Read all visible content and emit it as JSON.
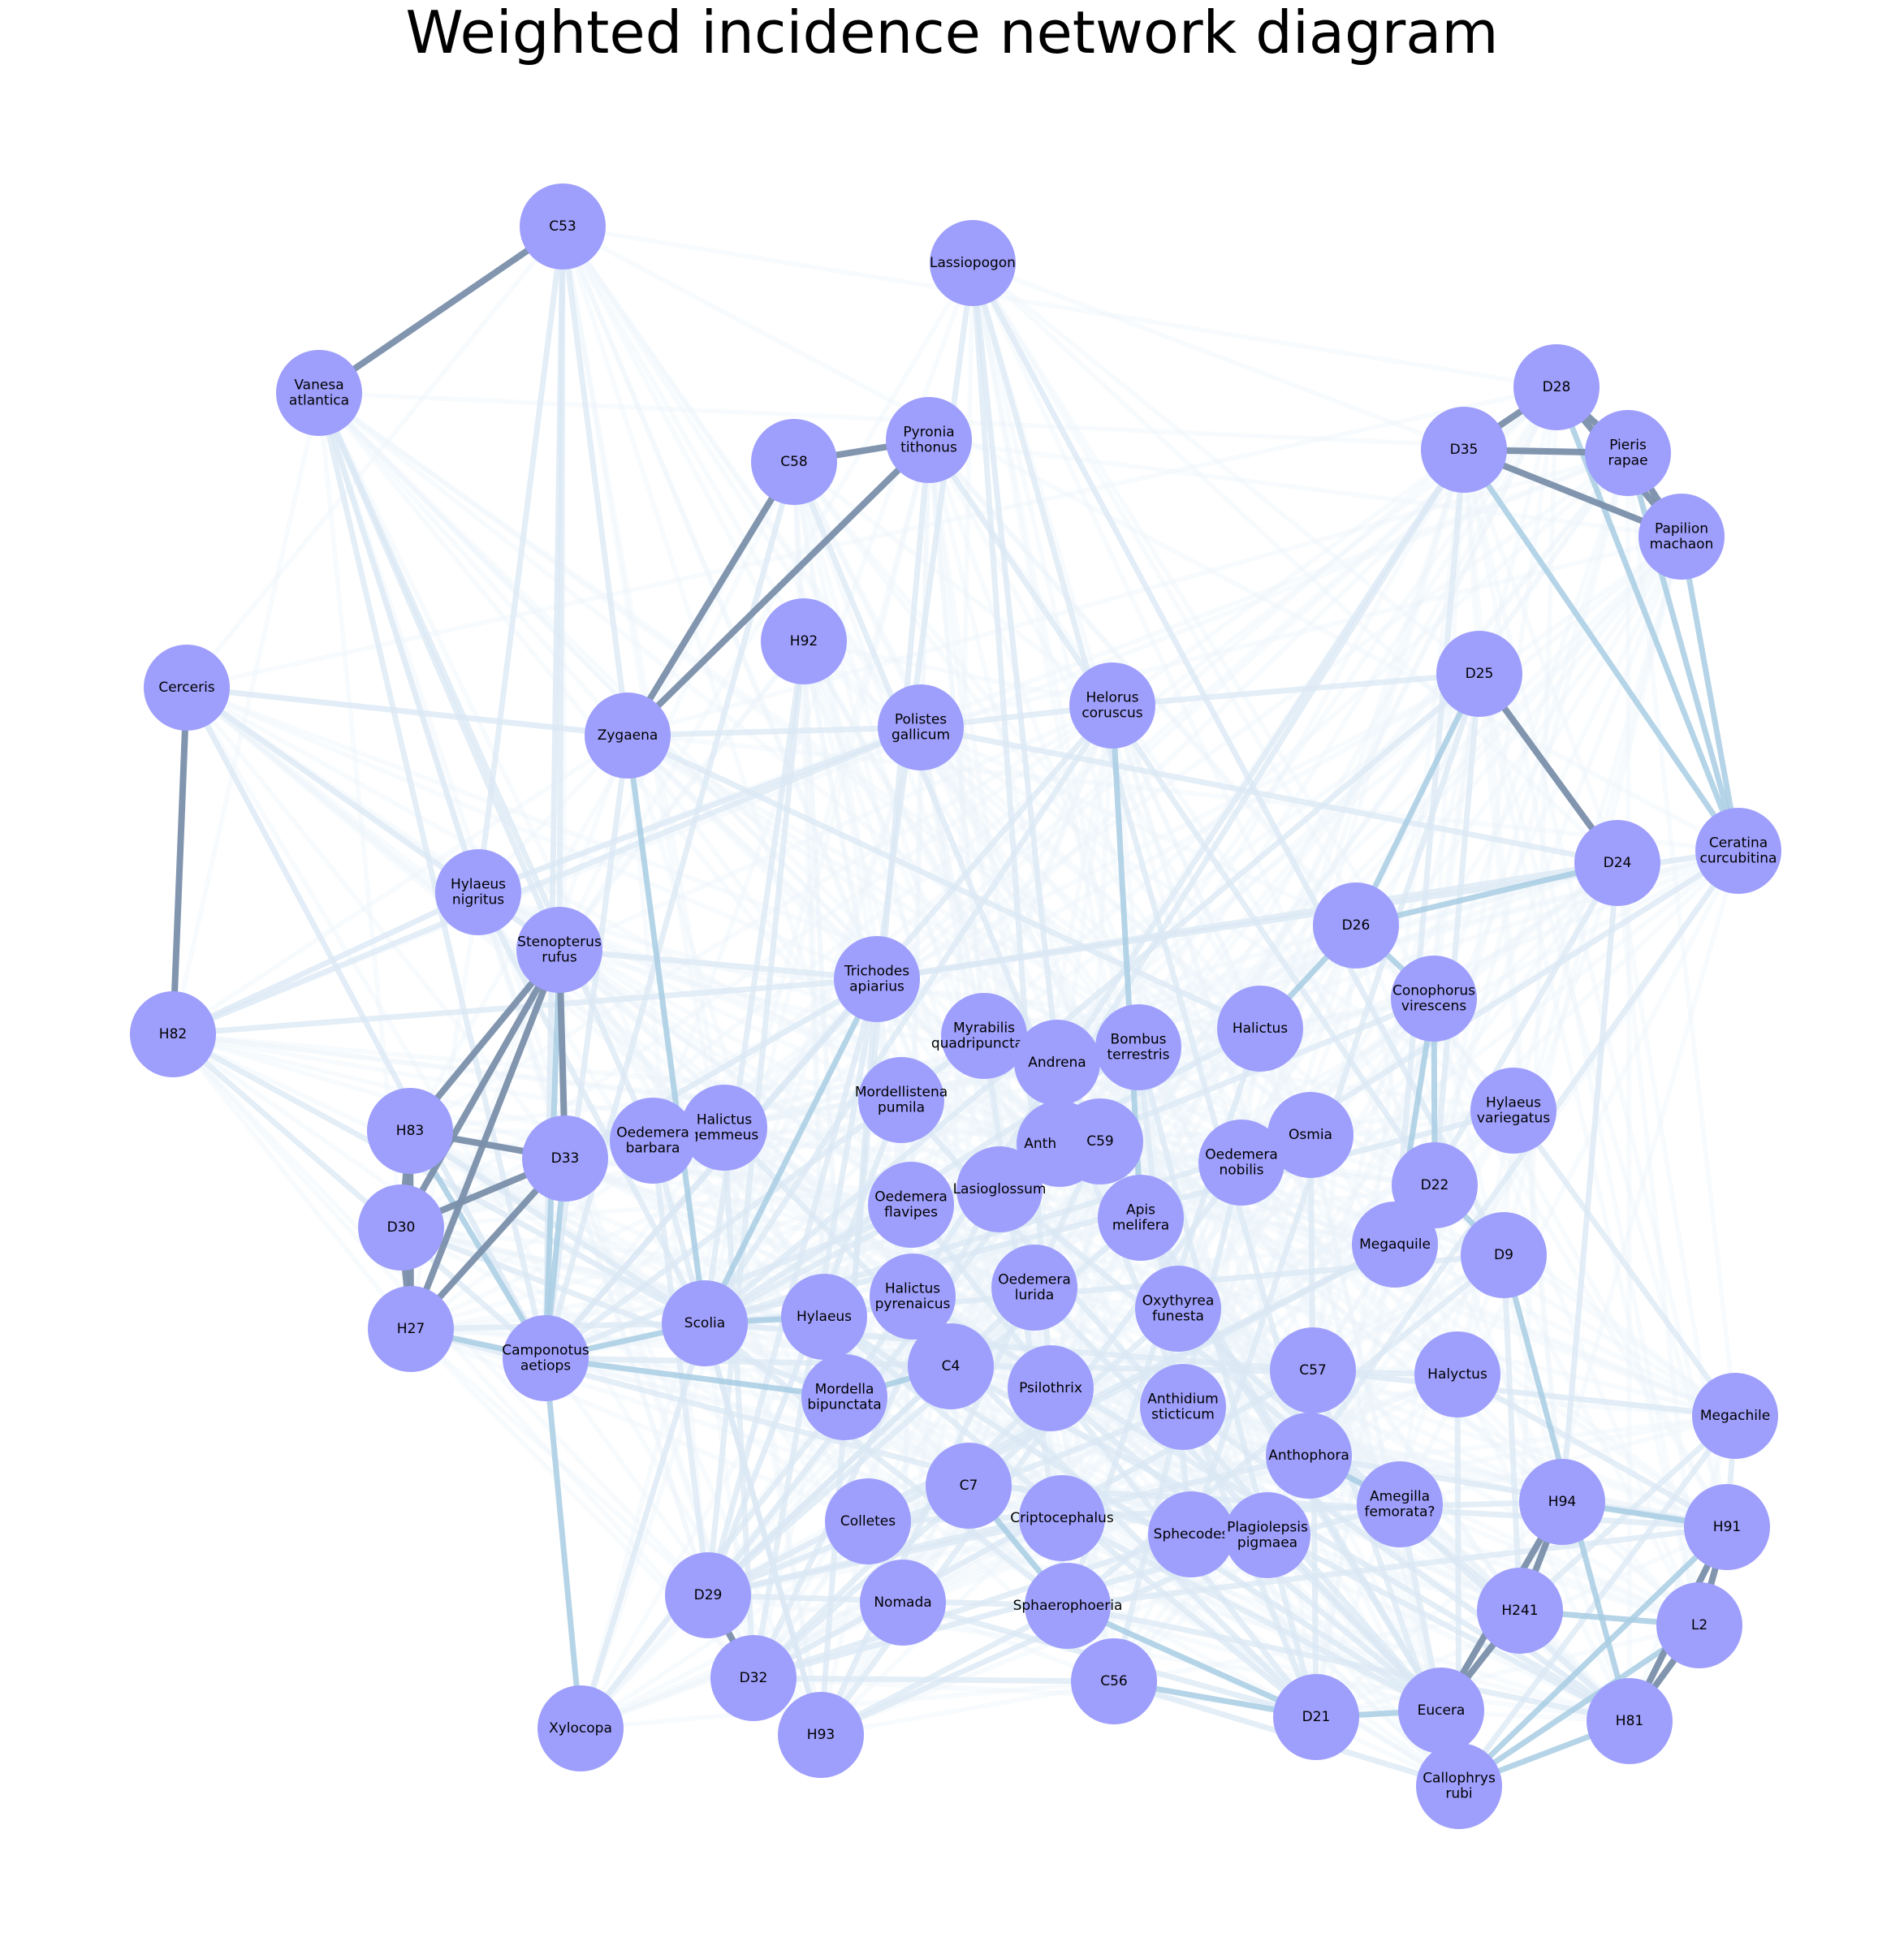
{
  "title": "Weighted incidence network diagram",
  "style": {
    "node_color": "#9e9efd",
    "strong_edge_color": "#7a8fab",
    "medium_edge_color": "#a8cde3",
    "weak_edge_color": "#dbe8f4",
    "faint_edge_color": "#ecf3fa"
  },
  "nodes": [
    {
      "id": "C53",
      "label": "C53"
    },
    {
      "id": "Lassiopogon",
      "label": "Lassiopogon"
    },
    {
      "id": "Vanesa",
      "label": "Vanesa\natlantica"
    },
    {
      "id": "Pyronia",
      "label": "Pyronia\ntithonus"
    },
    {
      "id": "C58",
      "label": "C58"
    },
    {
      "id": "D28",
      "label": "D28"
    },
    {
      "id": "D35",
      "label": "D35"
    },
    {
      "id": "Pieris",
      "label": "Pieris\nrapae"
    },
    {
      "id": "Papilion",
      "label": "Papilion\nmachaon"
    },
    {
      "id": "H92",
      "label": "H92"
    },
    {
      "id": "Cerceris",
      "label": "Cerceris"
    },
    {
      "id": "D25",
      "label": "D25"
    },
    {
      "id": "Zygaena",
      "label": "Zygaena"
    },
    {
      "id": "Polistes",
      "label": "Polistes\ngallicum"
    },
    {
      "id": "Helorus",
      "label": "Helorus\ncoruscus"
    },
    {
      "id": "Ceratina",
      "label": "Ceratina\ncurcubitina"
    },
    {
      "id": "D24",
      "label": "D24"
    },
    {
      "id": "HylaeusN",
      "label": "Hylaeus\nnigritus"
    },
    {
      "id": "D26",
      "label": "D26"
    },
    {
      "id": "Stenopterus",
      "label": "Stenopterus\nrufus"
    },
    {
      "id": "Trichodes",
      "label": "Trichodes\napiarius"
    },
    {
      "id": "Conophorus",
      "label": "Conophorus\nvirescens"
    },
    {
      "id": "H82",
      "label": "H82"
    },
    {
      "id": "Myrabilis",
      "label": "Myrabilis\nquadripunctata"
    },
    {
      "id": "Halictus",
      "label": "Halictus"
    },
    {
      "id": "Bombus",
      "label": "Bombus\nterrestris"
    },
    {
      "id": "Andrena",
      "label": "Andrena"
    },
    {
      "id": "Mordellistena",
      "label": "Mordellistena\npumila"
    },
    {
      "id": "HylaeusV",
      "label": "Hylaeus\nvariegatus"
    },
    {
      "id": "H83",
      "label": "H83"
    },
    {
      "id": "HalictusG",
      "label": "Halictus\ngemmeus"
    },
    {
      "id": "OedemeraB",
      "label": "Oedemera\nbarbara"
    },
    {
      "id": "Anthidium",
      "label": "Anthidium"
    },
    {
      "id": "C59",
      "label": "C59"
    },
    {
      "id": "Osmia",
      "label": "Osmia"
    },
    {
      "id": "D33",
      "label": "D33"
    },
    {
      "id": "OedemeraN",
      "label": "Oedemera\nnobilis"
    },
    {
      "id": "D22",
      "label": "D22"
    },
    {
      "id": "Lasioglossum",
      "label": "Lasioglossum"
    },
    {
      "id": "OedemeraF",
      "label": "Oedemera\nflavipes"
    },
    {
      "id": "Apis",
      "label": "Apis\nmelifera"
    },
    {
      "id": "D30",
      "label": "D30"
    },
    {
      "id": "Megaquile",
      "label": "Megaquile"
    },
    {
      "id": "D9",
      "label": "D9"
    },
    {
      "id": "OedemeraL",
      "label": "Oedemera\nlurida"
    },
    {
      "id": "HalictusP",
      "label": "Halictus\npyrenaicus"
    },
    {
      "id": "Oxythyrea",
      "label": "Oxythyrea\nfunesta"
    },
    {
      "id": "H27",
      "label": "H27"
    },
    {
      "id": "Scolia",
      "label": "Scolia"
    },
    {
      "id": "Hylaeus",
      "label": "Hylaeus"
    },
    {
      "id": "Camponotus",
      "label": "Camponotus\naetiops"
    },
    {
      "id": "C4",
      "label": "C4"
    },
    {
      "id": "C57",
      "label": "C57"
    },
    {
      "id": "Halyctus",
      "label": "Halyctus"
    },
    {
      "id": "Mordella",
      "label": "Mordella\nbipunctata"
    },
    {
      "id": "Psilothrix",
      "label": "Psilothrix"
    },
    {
      "id": "AnthidiumS",
      "label": "Anthidium\nsticticum"
    },
    {
      "id": "Megachile",
      "label": "Megachile"
    },
    {
      "id": "Anthophora",
      "label": "Anthophora"
    },
    {
      "id": "C7",
      "label": "C7"
    },
    {
      "id": "Amegilla",
      "label": "Amegilla\nfemorata?"
    },
    {
      "id": "H94",
      "label": "H94"
    },
    {
      "id": "Colletes",
      "label": "Colletes"
    },
    {
      "id": "Criptocephalus",
      "label": "Criptocephalus"
    },
    {
      "id": "Sphecodes",
      "label": "Sphecodes"
    },
    {
      "id": "Plagiolepsis",
      "label": "Plagiolepsis\npigmaea"
    },
    {
      "id": "H91",
      "label": "H91"
    },
    {
      "id": "D29",
      "label": "D29"
    },
    {
      "id": "Nomada",
      "label": "Nomada"
    },
    {
      "id": "Sphaerophoeria",
      "label": "Sphaerophoeria"
    },
    {
      "id": "H241",
      "label": "H241"
    },
    {
      "id": "L2",
      "label": "L2"
    },
    {
      "id": "D32",
      "label": "D32"
    },
    {
      "id": "C56",
      "label": "C56"
    },
    {
      "id": "Eucera",
      "label": "Eucera"
    },
    {
      "id": "H93",
      "label": "H93"
    },
    {
      "id": "D21",
      "label": "D21"
    },
    {
      "id": "H81",
      "label": "H81"
    },
    {
      "id": "Xylocopa",
      "label": "Xylocopa"
    },
    {
      "id": "Callophrys",
      "label": "Callophrys\nrubi"
    }
  ],
  "strong_edges": [
    [
      "C53",
      "Vanesa"
    ],
    [
      "C58",
      "Pyronia"
    ],
    [
      "C58",
      "Zygaena"
    ],
    [
      "Pyronia",
      "Zygaena"
    ],
    [
      "Cerceris",
      "H82"
    ],
    [
      "D28",
      "D35"
    ],
    [
      "D28",
      "Pieris"
    ],
    [
      "D28",
      "Papilion"
    ],
    [
      "D35",
      "Pieris"
    ],
    [
      "D35",
      "Papilion"
    ],
    [
      "Pieris",
      "Papilion"
    ],
    [
      "D25",
      "D24"
    ],
    [
      "Stenopterus",
      "H83"
    ],
    [
      "Stenopterus",
      "D30"
    ],
    [
      "Stenopterus",
      "H27"
    ],
    [
      "Stenopterus",
      "D33"
    ],
    [
      "H83",
      "D30"
    ],
    [
      "H83",
      "D33"
    ],
    [
      "H83",
      "H27"
    ],
    [
      "D30",
      "D33"
    ],
    [
      "D30",
      "H27"
    ],
    [
      "D33",
      "H27"
    ],
    [
      "H94",
      "H241"
    ],
    [
      "H94",
      "Eucera"
    ],
    [
      "H241",
      "Eucera"
    ],
    [
      "H91",
      "L2"
    ],
    [
      "H91",
      "H81"
    ],
    [
      "L2",
      "H81"
    ],
    [
      "D29",
      "D32"
    ]
  ],
  "medium_edges": [
    [
      "Camponotus",
      "Xylocopa"
    ],
    [
      "D35",
      "Ceratina"
    ],
    [
      "Papilion",
      "Ceratina"
    ],
    [
      "Pieris",
      "Ceratina"
    ],
    [
      "D28",
      "Ceratina"
    ],
    [
      "D25",
      "D26"
    ],
    [
      "D26",
      "D24"
    ],
    [
      "D26",
      "Conophorus"
    ],
    [
      "Conophorus",
      "D22"
    ],
    [
      "D22",
      "D9"
    ],
    [
      "D9",
      "H81"
    ],
    [
      "Stenopterus",
      "Camponotus"
    ],
    [
      "H83",
      "Camponotus"
    ],
    [
      "H27",
      "Camponotus"
    ],
    [
      "D33",
      "Camponotus"
    ],
    [
      "Camponotus",
      "Scolia"
    ],
    [
      "Callophrys",
      "L2"
    ],
    [
      "Callophrys",
      "H91"
    ],
    [
      "Callophrys",
      "H81"
    ],
    [
      "Eucera",
      "Callophrys"
    ],
    [
      "H94",
      "H91"
    ],
    [
      "H241",
      "L2"
    ],
    [
      "D21",
      "Eucera"
    ],
    [
      "Scolia",
      "Hylaeus"
    ],
    [
      "Helorus",
      "Apis"
    ],
    [
      "Conophorus",
      "Megaquile"
    ],
    [
      "C56",
      "D21"
    ],
    [
      "Trichodes",
      "Scolia"
    ],
    [
      "D26",
      "Halictus"
    ],
    [
      "Sphaerophoeria",
      "C7"
    ],
    [
      "Mordella",
      "C4"
    ],
    [
      "Anthophora",
      "Amegilla"
    ],
    [
      "Zygaena",
      "Scolia"
    ],
    [
      "Mordella",
      "Camponotus"
    ],
    [
      "Sphaerophoeria",
      "D21"
    ]
  ],
  "weak_edges": [
    [
      "C53",
      "HylaeusN"
    ],
    [
      "C53",
      "Zygaena"
    ],
    [
      "C53",
      "Stenopterus"
    ],
    [
      "C53",
      "Camponotus"
    ],
    [
      "Vanesa",
      "HylaeusN"
    ],
    [
      "Vanesa",
      "Stenopterus"
    ],
    [
      "Vanesa",
      "Camponotus"
    ],
    [
      "Vanesa",
      "OedemeraB"
    ],
    [
      "Lassiopogon",
      "D9"
    ],
    [
      "Lassiopogon",
      "Anthophora"
    ],
    [
      "Lassiopogon",
      "Andrena"
    ],
    [
      "Lassiopogon",
      "Trichodes"
    ],
    [
      "Lassiopogon",
      "Psilothrix"
    ],
    [
      "Cerceris",
      "Zygaena"
    ],
    [
      "Cerceris",
      "Stenopterus"
    ],
    [
      "Cerceris",
      "Camponotus"
    ],
    [
      "H82",
      "HylaeusN"
    ],
    [
      "H82",
      "Polistes"
    ],
    [
      "H82",
      "Trichodes"
    ],
    [
      "H82",
      "Scolia"
    ],
    [
      "H82",
      "Camponotus"
    ],
    [
      "Polistes",
      "D24"
    ],
    [
      "Polistes",
      "Zygaena"
    ],
    [
      "Polistes",
      "Helorus"
    ],
    [
      "Helorus",
      "D25"
    ],
    [
      "Helorus",
      "Scolia"
    ],
    [
      "Helorus",
      "Camponotus"
    ],
    [
      "HylaeusN",
      "Scolia"
    ],
    [
      "HylaeusN",
      "Polistes"
    ],
    [
      "D35",
      "Lasioglossum"
    ],
    [
      "D35",
      "Megaquile"
    ],
    [
      "D35",
      "Mordella"
    ],
    [
      "D25",
      "Scolia"
    ],
    [
      "D25",
      "Sphecodes"
    ],
    [
      "D25",
      "D22"
    ],
    [
      "D24",
      "Megaquile"
    ],
    [
      "D24",
      "Trichodes"
    ],
    [
      "D24",
      "H94"
    ],
    [
      "Ceratina",
      "Trichodes"
    ],
    [
      "Ceratina",
      "Anthophora"
    ],
    [
      "Ceratina",
      "OedemeraN"
    ],
    [
      "Conophorus",
      "Camponotus"
    ],
    [
      "HylaeusV",
      "Scolia"
    ],
    [
      "HylaeusV",
      "Megachile"
    ],
    [
      "Megachile",
      "H91"
    ],
    [
      "Megachile",
      "H241"
    ],
    [
      "Megachile",
      "C57"
    ],
    [
      "Megachile",
      "Callophrys"
    ],
    [
      "H92",
      "Scolia"
    ],
    [
      "H92",
      "D29"
    ],
    [
      "Trichodes",
      "D32"
    ],
    [
      "Trichodes",
      "Camponotus"
    ],
    [
      "Trichodes",
      "D29"
    ],
    [
      "Trichodes",
      "H93"
    ],
    [
      "Myrabilis",
      "Camponotus"
    ],
    [
      "Myrabilis",
      "Sphaerophoeria"
    ],
    [
      "Bombus",
      "Scolia"
    ],
    [
      "Bombus",
      "D21"
    ],
    [
      "Bombus",
      "Sphecodes"
    ],
    [
      "Andrena",
      "D32"
    ],
    [
      "Andrena",
      "Eucera"
    ],
    [
      "Halictus",
      "Scolia"
    ],
    [
      "Halictus",
      "Sphaerophoeria"
    ],
    [
      "Osmia",
      "D21"
    ],
    [
      "Osmia",
      "Scolia"
    ],
    [
      "OedemeraN",
      "C56"
    ],
    [
      "OedemeraN",
      "H93"
    ],
    [
      "Apis",
      "D29"
    ],
    [
      "Apis",
      "Eucera"
    ],
    [
      "Megaquile",
      "Colletes"
    ],
    [
      "Megaquile",
      "D29"
    ],
    [
      "D9",
      "Scolia"
    ],
    [
      "D9",
      "H241"
    ],
    [
      "D9",
      "Sphaerophoeria"
    ],
    [
      "OedemeraL",
      "D29"
    ],
    [
      "OedemeraL",
      "Eucera"
    ],
    [
      "Oxythyrea",
      "D32"
    ],
    [
      "Oxythyrea",
      "H81"
    ],
    [
      "Scolia",
      "H93"
    ],
    [
      "Scolia",
      "Sphaerophoeria"
    ],
    [
      "Hylaeus",
      "Eucera"
    ],
    [
      "Hylaeus",
      "D21"
    ],
    [
      "C4",
      "H81"
    ],
    [
      "C4",
      "D29"
    ],
    [
      "C57",
      "Scolia"
    ],
    [
      "C57",
      "D32"
    ],
    [
      "C57",
      "Callophrys"
    ],
    [
      "Halyctus",
      "Camponotus"
    ],
    [
      "Halyctus",
      "H91"
    ],
    [
      "Halyctus",
      "Callophrys"
    ],
    [
      "Psilothrix",
      "Eucera"
    ],
    [
      "Psilothrix",
      "D32"
    ],
    [
      "AnthidiumS",
      "D29"
    ],
    [
      "AnthidiumS",
      "H81"
    ],
    [
      "Anthophora",
      "D29"
    ],
    [
      "Anthophora",
      "H91"
    ],
    [
      "C7",
      "H91"
    ],
    [
      "Amegilla",
      "D32"
    ],
    [
      "Amegilla",
      "Eucera"
    ],
    [
      "Colletes",
      "H94"
    ],
    [
      "Criptocephalus",
      "Eucera"
    ],
    [
      "Criptocephalus",
      "D29"
    ],
    [
      "Sphecodes",
      "D32"
    ],
    [
      "Plagiolepsis",
      "H93"
    ],
    [
      "Plagiolepsis",
      "Eucera"
    ],
    [
      "D29",
      "Sphaerophoeria"
    ],
    [
      "Nomada",
      "D21"
    ],
    [
      "Sphaerophoeria",
      "H81"
    ],
    [
      "Sphaerophoeria",
      "H91"
    ],
    [
      "D32",
      "C56"
    ],
    [
      "C56",
      "Callophrys"
    ],
    [
      "H93",
      "Sphaerophoeria"
    ],
    [
      "Xylocopa",
      "Mordella"
    ],
    [
      "Xylocopa",
      "Scolia"
    ],
    [
      "OedemeraB",
      "D29"
    ],
    [
      "OedemeraB",
      "H93"
    ],
    [
      "HalictusG",
      "D32"
    ],
    [
      "HalictusG",
      "D21"
    ],
    [
      "Mordellistena",
      "D29"
    ],
    [
      "Mordellistena",
      "Eucera"
    ],
    [
      "OedemeraF",
      "D21"
    ],
    [
      "HalictusP",
      "H81"
    ],
    [
      "Lasioglossum",
      "H241"
    ],
    [
      "Anthidium",
      "D29"
    ],
    [
      "C59",
      "H93"
    ],
    [
      "Zygaena",
      "Camponotus"
    ],
    [
      "Zygaena",
      "Halictus"
    ],
    [
      "Pyronia",
      "Mordella"
    ],
    [
      "Pyronia",
      "D22"
    ],
    [
      "C58",
      "Camponotus"
    ],
    [
      "C58",
      "D21"
    ],
    [
      "Stenopterus",
      "Trichodes"
    ],
    [
      "D33",
      "Trichodes"
    ],
    [
      "H27",
      "Scolia"
    ],
    [
      "H27",
      "Sphecodes"
    ],
    [
      "D30",
      "Mordella"
    ],
    [
      "H83",
      "Scolia"
    ]
  ]
}
